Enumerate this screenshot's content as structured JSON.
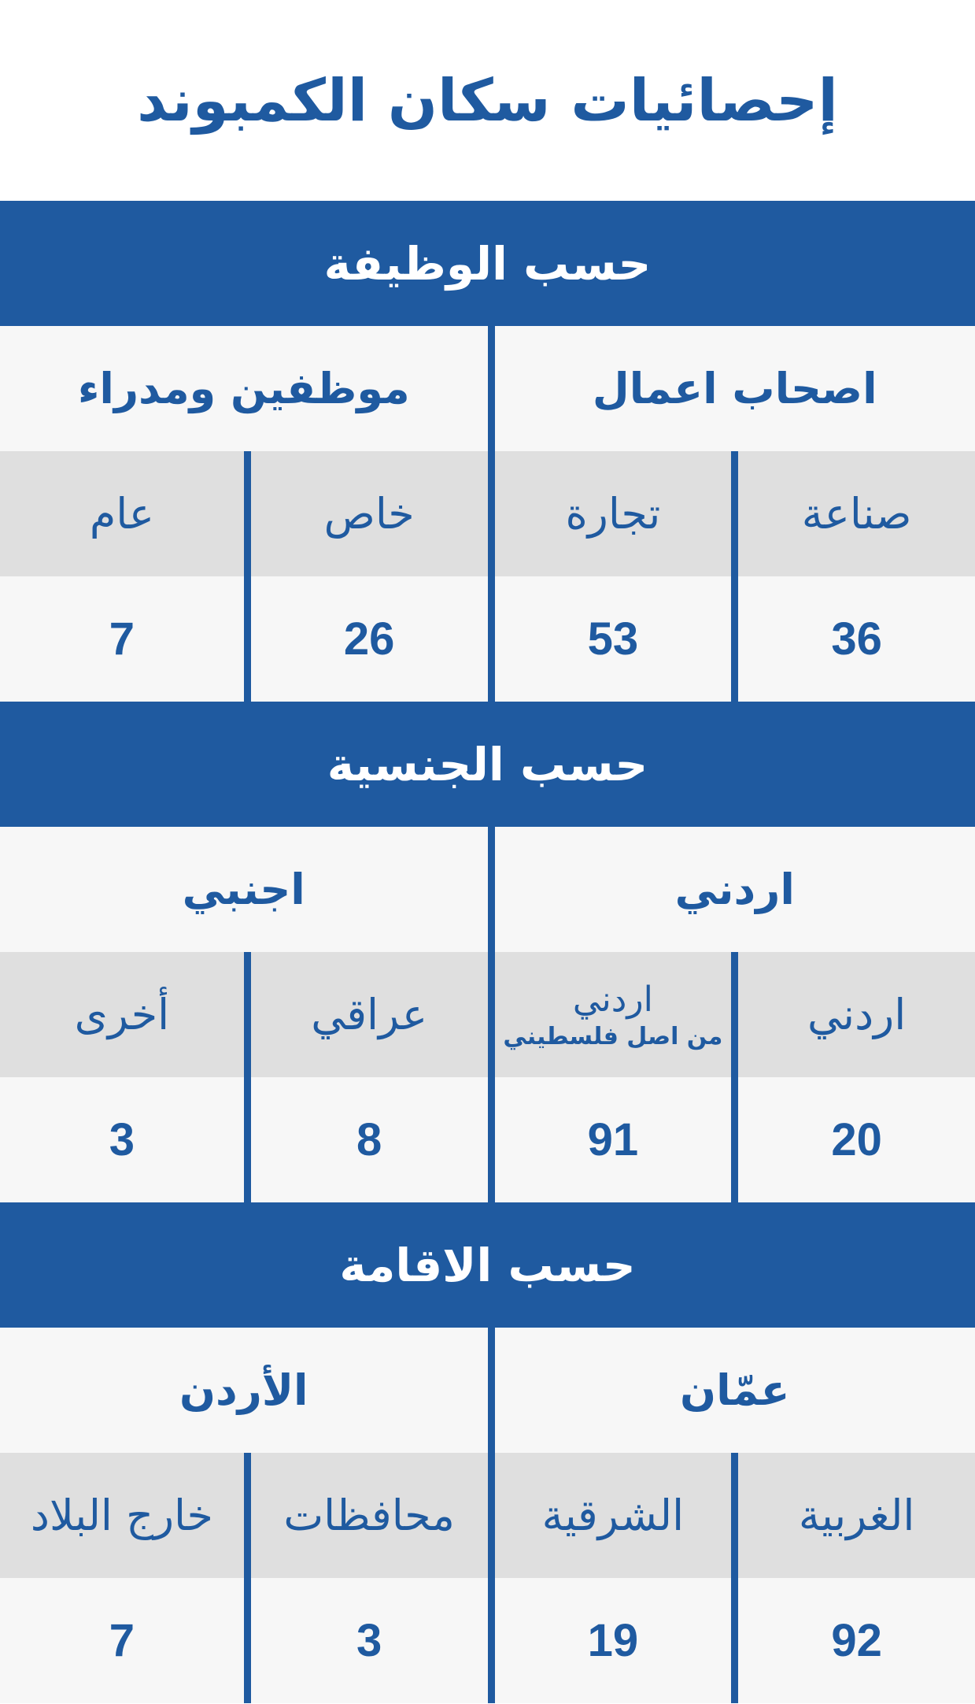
{
  "title": "إحصائيات سكان الكمبوند",
  "colors": {
    "brand_blue": "#1f5aa0",
    "subheader_gray": "#dfdfdf",
    "row_light": "#f7f7f7"
  },
  "sections": [
    {
      "header": "حسب الوظيفة",
      "categories": [
        "اصحاب اعمال",
        "موظفين ومدراء"
      ],
      "subs": [
        {
          "label": "صناعة"
        },
        {
          "label": "تجارة"
        },
        {
          "label": "خاص"
        },
        {
          "label": "عام"
        }
      ],
      "values": [
        "36",
        "53",
        "26",
        "7"
      ]
    },
    {
      "header": "حسب الجنسية",
      "categories": [
        "اردني",
        "اجنبي"
      ],
      "subs": [
        {
          "label": "اردني"
        },
        {
          "label": "اردني",
          "note": "من اصل فلسطيني"
        },
        {
          "label": "عراقي"
        },
        {
          "label": "أخرى"
        }
      ],
      "values": [
        "20",
        "91",
        "8",
        "3"
      ]
    },
    {
      "header": "حسب الاقامة",
      "categories": [
        "عمّان",
        "الأردن"
      ],
      "subs": [
        {
          "label": "الغربية"
        },
        {
          "label": "الشرقية"
        },
        {
          "label": "محافظات"
        },
        {
          "label": "خارج البلاد"
        }
      ],
      "values": [
        "92",
        "19",
        "3",
        "7"
      ]
    }
  ]
}
